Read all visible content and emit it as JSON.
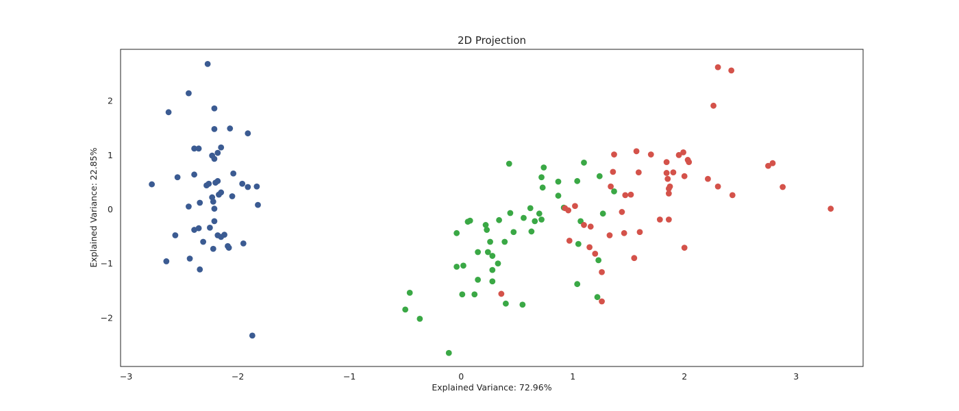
{
  "chart_data": {
    "type": "scatter",
    "title": "2D Projection",
    "xlabel": "Explained Variance: 72.96%",
    "ylabel": "Explained Variance: 22.85%",
    "xlim": [
      -3.05,
      3.6
    ],
    "ylim": [
      -2.9,
      2.95
    ],
    "xticks": [
      -3,
      -2,
      -1,
      0,
      1,
      2,
      3
    ],
    "yticks": [
      -2,
      -1,
      0,
      1,
      2
    ],
    "grid": false,
    "series": [
      {
        "color": "#3b5b92",
        "points": [
          [
            -2.27,
            2.68
          ],
          [
            -2.44,
            2.14
          ],
          [
            -2.62,
            1.79
          ],
          [
            -2.21,
            1.86
          ],
          [
            -2.21,
            1.48
          ],
          [
            -2.07,
            1.49
          ],
          [
            -1.91,
            1.4
          ],
          [
            -2.39,
            1.12
          ],
          [
            -2.35,
            1.12
          ],
          [
            -2.15,
            1.14
          ],
          [
            -2.18,
            1.04
          ],
          [
            -2.23,
            0.99
          ],
          [
            -2.21,
            0.93
          ],
          [
            -2.04,
            0.66
          ],
          [
            -2.39,
            0.64
          ],
          [
            -2.54,
            0.59
          ],
          [
            -2.77,
            0.46
          ],
          [
            -2.28,
            0.44
          ],
          [
            -2.26,
            0.47
          ],
          [
            -2.2,
            0.49
          ],
          [
            -2.18,
            0.52
          ],
          [
            -1.96,
            0.47
          ],
          [
            -1.91,
            0.41
          ],
          [
            -1.83,
            0.42
          ],
          [
            -2.17,
            0.27
          ],
          [
            -2.15,
            0.31
          ],
          [
            -2.23,
            0.22
          ],
          [
            -2.05,
            0.24
          ],
          [
            -2.22,
            0.14
          ],
          [
            -2.34,
            0.12
          ],
          [
            -1.82,
            0.08
          ],
          [
            -2.44,
            0.05
          ],
          [
            -2.21,
            0.01
          ],
          [
            -2.21,
            -0.22
          ],
          [
            -2.25,
            -0.34
          ],
          [
            -2.35,
            -0.35
          ],
          [
            -2.39,
            -0.38
          ],
          [
            -2.56,
            -0.48
          ],
          [
            -2.18,
            -0.48
          ],
          [
            -2.12,
            -0.47
          ],
          [
            -2.15,
            -0.51
          ],
          [
            -2.31,
            -0.6
          ],
          [
            -1.95,
            -0.63
          ],
          [
            -2.09,
            -0.68
          ],
          [
            -2.08,
            -0.71
          ],
          [
            -2.22,
            -0.73
          ],
          [
            -2.43,
            -0.91
          ],
          [
            -2.64,
            -0.96
          ],
          [
            -2.34,
            -1.11
          ],
          [
            -1.87,
            -2.33
          ]
        ]
      },
      {
        "color": "#3aa845",
        "points": [
          [
            0.43,
            0.84
          ],
          [
            0.74,
            0.77
          ],
          [
            1.1,
            0.86
          ],
          [
            1.24,
            0.61
          ],
          [
            0.72,
            0.59
          ],
          [
            0.87,
            0.51
          ],
          [
            1.04,
            0.52
          ],
          [
            0.73,
            0.4
          ],
          [
            1.37,
            0.33
          ],
          [
            0.87,
            0.25
          ],
          [
            0.62,
            0.02
          ],
          [
            0.92,
            0.03
          ],
          [
            0.44,
            -0.07
          ],
          [
            0.7,
            -0.08
          ],
          [
            1.27,
            -0.08
          ],
          [
            0.56,
            -0.16
          ],
          [
            0.34,
            -0.2
          ],
          [
            0.72,
            -0.19
          ],
          [
            0.66,
            -0.22
          ],
          [
            1.07,
            -0.22
          ],
          [
            0.08,
            -0.21
          ],
          [
            0.06,
            -0.23
          ],
          [
            0.22,
            -0.29
          ],
          [
            0.23,
            -0.38
          ],
          [
            0.63,
            -0.41
          ],
          [
            0.47,
            -0.42
          ],
          [
            -0.04,
            -0.44
          ],
          [
            0.39,
            -0.6
          ],
          [
            0.26,
            -0.6
          ],
          [
            1.05,
            -0.64
          ],
          [
            0.15,
            -0.79
          ],
          [
            0.24,
            -0.79
          ],
          [
            0.28,
            -0.86
          ],
          [
            1.23,
            -0.94
          ],
          [
            0.33,
            -1.0
          ],
          [
            -0.04,
            -1.06
          ],
          [
            0.02,
            -1.04
          ],
          [
            0.28,
            -1.12
          ],
          [
            0.15,
            -1.3
          ],
          [
            0.28,
            -1.33
          ],
          [
            1.04,
            -1.38
          ],
          [
            -0.46,
            -1.54
          ],
          [
            0.01,
            -1.57
          ],
          [
            0.12,
            -1.57
          ],
          [
            1.22,
            -1.62
          ],
          [
            0.4,
            -1.74
          ],
          [
            0.55,
            -1.76
          ],
          [
            -0.5,
            -1.85
          ],
          [
            -0.37,
            -2.02
          ],
          [
            -0.11,
            -2.65
          ]
        ]
      },
      {
        "color": "#d4524a",
        "points": [
          [
            2.3,
            2.62
          ],
          [
            2.42,
            2.56
          ],
          [
            2.26,
            1.91
          ],
          [
            1.57,
            1.07
          ],
          [
            1.99,
            1.05
          ],
          [
            1.37,
            1.01
          ],
          [
            1.7,
            1.01
          ],
          [
            1.95,
            1.0
          ],
          [
            2.03,
            0.91
          ],
          [
            2.04,
            0.87
          ],
          [
            1.84,
            0.87
          ],
          [
            2.79,
            0.85
          ],
          [
            2.75,
            0.8
          ],
          [
            1.36,
            0.69
          ],
          [
            1.59,
            0.68
          ],
          [
            1.84,
            0.67
          ],
          [
            1.9,
            0.68
          ],
          [
            2.0,
            0.61
          ],
          [
            1.85,
            0.56
          ],
          [
            2.21,
            0.56
          ],
          [
            1.34,
            0.42
          ],
          [
            1.87,
            0.42
          ],
          [
            2.3,
            0.42
          ],
          [
            2.88,
            0.41
          ],
          [
            1.86,
            0.38
          ],
          [
            1.86,
            0.29
          ],
          [
            1.52,
            0.27
          ],
          [
            1.47,
            0.26
          ],
          [
            2.43,
            0.26
          ],
          [
            1.02,
            0.06
          ],
          [
            0.93,
            0.02
          ],
          [
            0.96,
            -0.02
          ],
          [
            3.31,
            0.01
          ],
          [
            1.44,
            -0.05
          ],
          [
            1.78,
            -0.19
          ],
          [
            1.86,
            -0.19
          ],
          [
            1.1,
            -0.29
          ],
          [
            1.16,
            -0.32
          ],
          [
            1.6,
            -0.42
          ],
          [
            1.46,
            -0.44
          ],
          [
            1.33,
            -0.48
          ],
          [
            0.97,
            -0.58
          ],
          [
            1.15,
            -0.7
          ],
          [
            2.0,
            -0.71
          ],
          [
            1.2,
            -0.82
          ],
          [
            1.55,
            -0.9
          ],
          [
            1.26,
            -1.16
          ],
          [
            0.36,
            -1.56
          ],
          [
            1.26,
            -1.7
          ]
        ]
      }
    ]
  }
}
